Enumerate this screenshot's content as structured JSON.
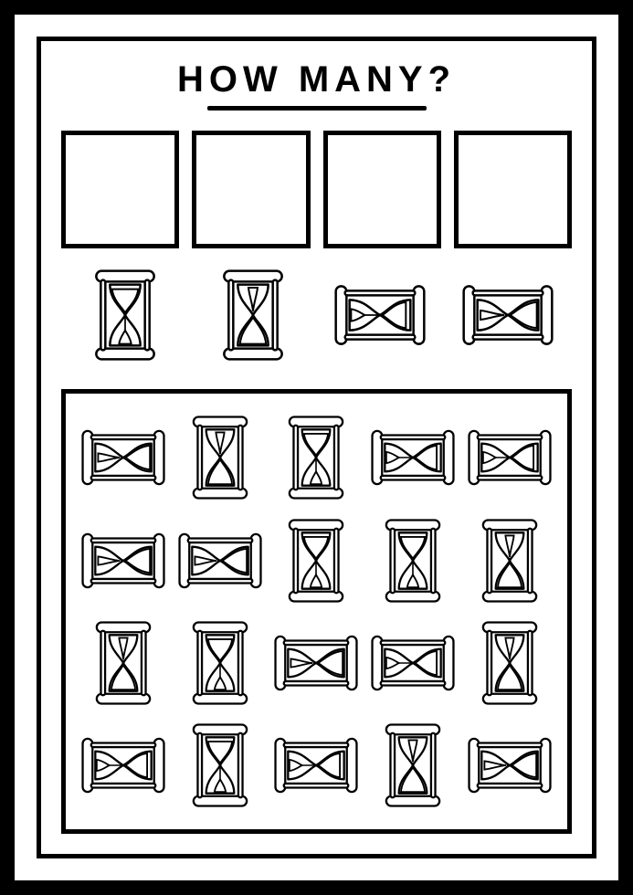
{
  "title": "HOW MANY?",
  "colors": {
    "stroke": "#000000",
    "fill": "#ffffff",
    "page_bg": "#ffffff",
    "border_outer_width": 16,
    "border_inner_width": 5,
    "answer_box_border": 5,
    "grid_box_border": 5
  },
  "typography": {
    "title_fontsize": 40,
    "title_weight": "700",
    "title_letter_spacing": 6
  },
  "answer_boxes": 4,
  "legend": [
    {
      "variant": "A",
      "rotation": 0
    },
    {
      "variant": "B",
      "rotation": 0
    },
    {
      "variant": "A",
      "rotation": 90
    },
    {
      "variant": "B",
      "rotation": -90
    }
  ],
  "grid": [
    [
      {
        "variant": "B",
        "rotation": -90
      },
      {
        "variant": "B",
        "rotation": 0
      },
      {
        "variant": "A",
        "rotation": 0
      },
      {
        "variant": "A",
        "rotation": 90
      },
      {
        "variant": "A",
        "rotation": 90
      }
    ],
    [
      {
        "variant": "B",
        "rotation": -90
      },
      {
        "variant": "B",
        "rotation": -90
      },
      {
        "variant": "A",
        "rotation": 0
      },
      {
        "variant": "A",
        "rotation": 0
      },
      {
        "variant": "B",
        "rotation": 0
      }
    ],
    [
      {
        "variant": "B",
        "rotation": 0
      },
      {
        "variant": "A",
        "rotation": 0
      },
      {
        "variant": "B",
        "rotation": -90
      },
      {
        "variant": "A",
        "rotation": 90
      },
      {
        "variant": "B",
        "rotation": 0
      }
    ],
    [
      {
        "variant": "A",
        "rotation": 90
      },
      {
        "variant": "A",
        "rotation": 0
      },
      {
        "variant": "A",
        "rotation": 90
      },
      {
        "variant": "B",
        "rotation": 0
      },
      {
        "variant": "B",
        "rotation": -90
      }
    ]
  ],
  "icon_size_legend": 100,
  "icon_size_grid": 92,
  "stroke_width": 3
}
